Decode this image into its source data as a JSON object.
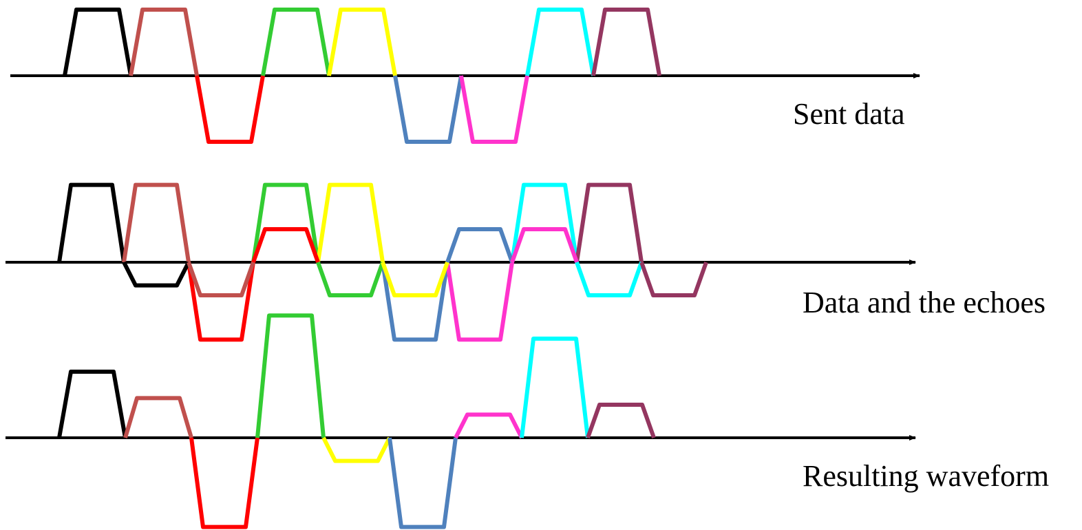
{
  "captions": {
    "sent": "Sent data",
    "echoes": "Data and the echoes",
    "resulting": "Resulting waveform"
  },
  "colors": {
    "axis": "#000000",
    "symbols": [
      "#000000",
      "#C0504D",
      "#FF0000",
      "#33CC33",
      "#FFFF00",
      "#4F81BD",
      "#FF33CC",
      "#00FFFF",
      "#943660"
    ]
  },
  "symbols": {
    "sent": [
      1,
      1,
      -1,
      1,
      1,
      -1,
      -1,
      1,
      1
    ],
    "echo": [
      -0.35,
      -0.5,
      0.5,
      -0.5,
      -0.5,
      0.5,
      0.5,
      -0.5,
      -0.5
    ],
    "resulting": [
      1,
      0.6,
      -1.35,
      1.85,
      -0.35,
      -1.35,
      0.35,
      1.5,
      0.5
    ]
  }
}
